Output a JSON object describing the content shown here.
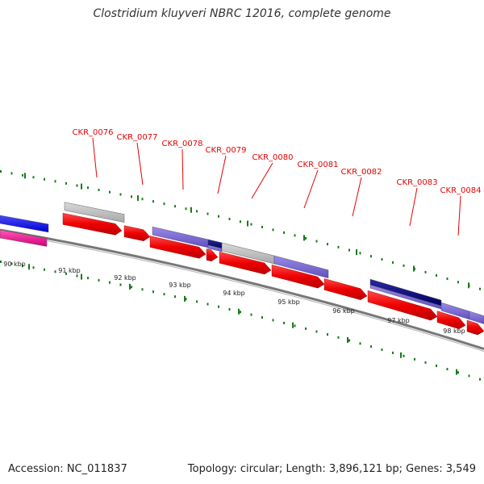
{
  "title": "Clostridium kluyveri NBRC 12016, complete genome",
  "footer": {
    "accession": "Accession: NC_011837",
    "summary": "Topology: circular; Length: 3,896,121 bp; Genes: 3,549"
  },
  "kbp_labels": [
    "90 kbp",
    "91 kbp",
    "92 kbp",
    "93 kbp",
    "94 kbp",
    "95 kbp",
    "96 kbp",
    "97 kbp",
    "98 kbp"
  ],
  "gene_labels": [
    "CKR_0076",
    "CKR_0077",
    "CKR_0078",
    "CKR_0079",
    "CKR_0080",
    "CKR_0081",
    "CKR_0082",
    "CKR_0083",
    "CKR_0084"
  ],
  "colors": {
    "gene_arrow": "#ee0000",
    "cog_gray": "#b8b8b8",
    "cog_purple": "#7b68d8",
    "cog_navy": "#0a0a80",
    "cog_blue": "#1010ee",
    "cog_pink": "#ee1090",
    "tick_green": "#1a7a1a",
    "backbone": "#777777"
  }
}
